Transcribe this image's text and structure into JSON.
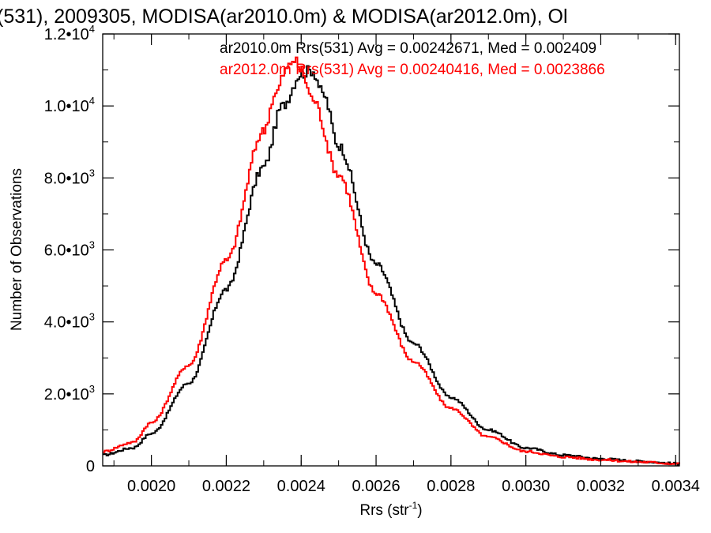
{
  "chart_data": {
    "type": "line",
    "style": "histogram-step",
    "title": "(531), 2009305, MODISA(ar2010.0m) & MODISA(ar2012.0m), Ol",
    "xlabel": "Rrs (str",
    "xlabel_sup": "-1",
    "xlabel_end": ")",
    "ylabel": "Number of Observations",
    "xlim": [
      0.00187,
      0.00341
    ],
    "ylim": [
      0,
      12000
    ],
    "grid": false,
    "legend_position": "top-right",
    "x_ticks": [
      {
        "value": 0.002,
        "label": "0.0020"
      },
      {
        "value": 0.0022,
        "label": "0.0022"
      },
      {
        "value": 0.0024,
        "label": "0.0024"
      },
      {
        "value": 0.0026,
        "label": "0.0026"
      },
      {
        "value": 0.0028,
        "label": "0.0028"
      },
      {
        "value": 0.003,
        "label": "0.0030"
      },
      {
        "value": 0.0032,
        "label": "0.0032"
      },
      {
        "value": 0.0034,
        "label": "0.0034"
      }
    ],
    "y_ticks": [
      {
        "value": 0,
        "mant": "0",
        "exp": ""
      },
      {
        "value": 2000,
        "mant": "2.0•10",
        "exp": "3"
      },
      {
        "value": 4000,
        "mant": "4.0•10",
        "exp": "3"
      },
      {
        "value": 6000,
        "mant": "6.0•10",
        "exp": "3"
      },
      {
        "value": 8000,
        "mant": "8.0•10",
        "exp": "3"
      },
      {
        "value": 10000,
        "mant": "1.0•10",
        "exp": "4"
      },
      {
        "value": 12000,
        "mant": "1.2•10",
        "exp": "4"
      }
    ],
    "series": [
      {
        "name": "ar2010.0m",
        "color": "#000000",
        "legend_text": "ar2010.0m Rrs(531) Avg = 0.00242671, Med = 0.00240​9",
        "x": [
          0.00187,
          0.00195,
          0.002,
          0.0021,
          0.0022,
          0.0023,
          0.00235,
          0.0024,
          0.00243,
          0.00246,
          0.0025,
          0.0026,
          0.0027,
          0.0028,
          0.0029,
          0.003,
          0.0031,
          0.0032,
          0.0033,
          0.00341
        ],
        "values": [
          300,
          500,
          900,
          2300,
          4900,
          8300,
          10000,
          10900,
          11000,
          10300,
          8900,
          5600,
          3400,
          1900,
          1000,
          500,
          300,
          200,
          130,
          60
        ]
      },
      {
        "name": "ar2012.0m",
        "color": "#ff0000",
        "legend_text": "ar2012.0m Rrs(531) Avg = 0.00240416, Med = 0.0023866",
        "x": [
          0.00187,
          0.00195,
          0.002,
          0.0021,
          0.0022,
          0.0023,
          0.00233,
          0.00236,
          0.00238,
          0.0024,
          0.00243,
          0.0025,
          0.0026,
          0.0027,
          0.0028,
          0.0029,
          0.003,
          0.0031,
          0.0032,
          0.0033,
          0.00341
        ],
        "values": [
          400,
          650,
          1200,
          2800,
          5700,
          9300,
          10300,
          11000,
          11300,
          11000,
          10200,
          8100,
          4800,
          2900,
          1600,
          800,
          400,
          250,
          170,
          110,
          60
        ]
      }
    ]
  }
}
